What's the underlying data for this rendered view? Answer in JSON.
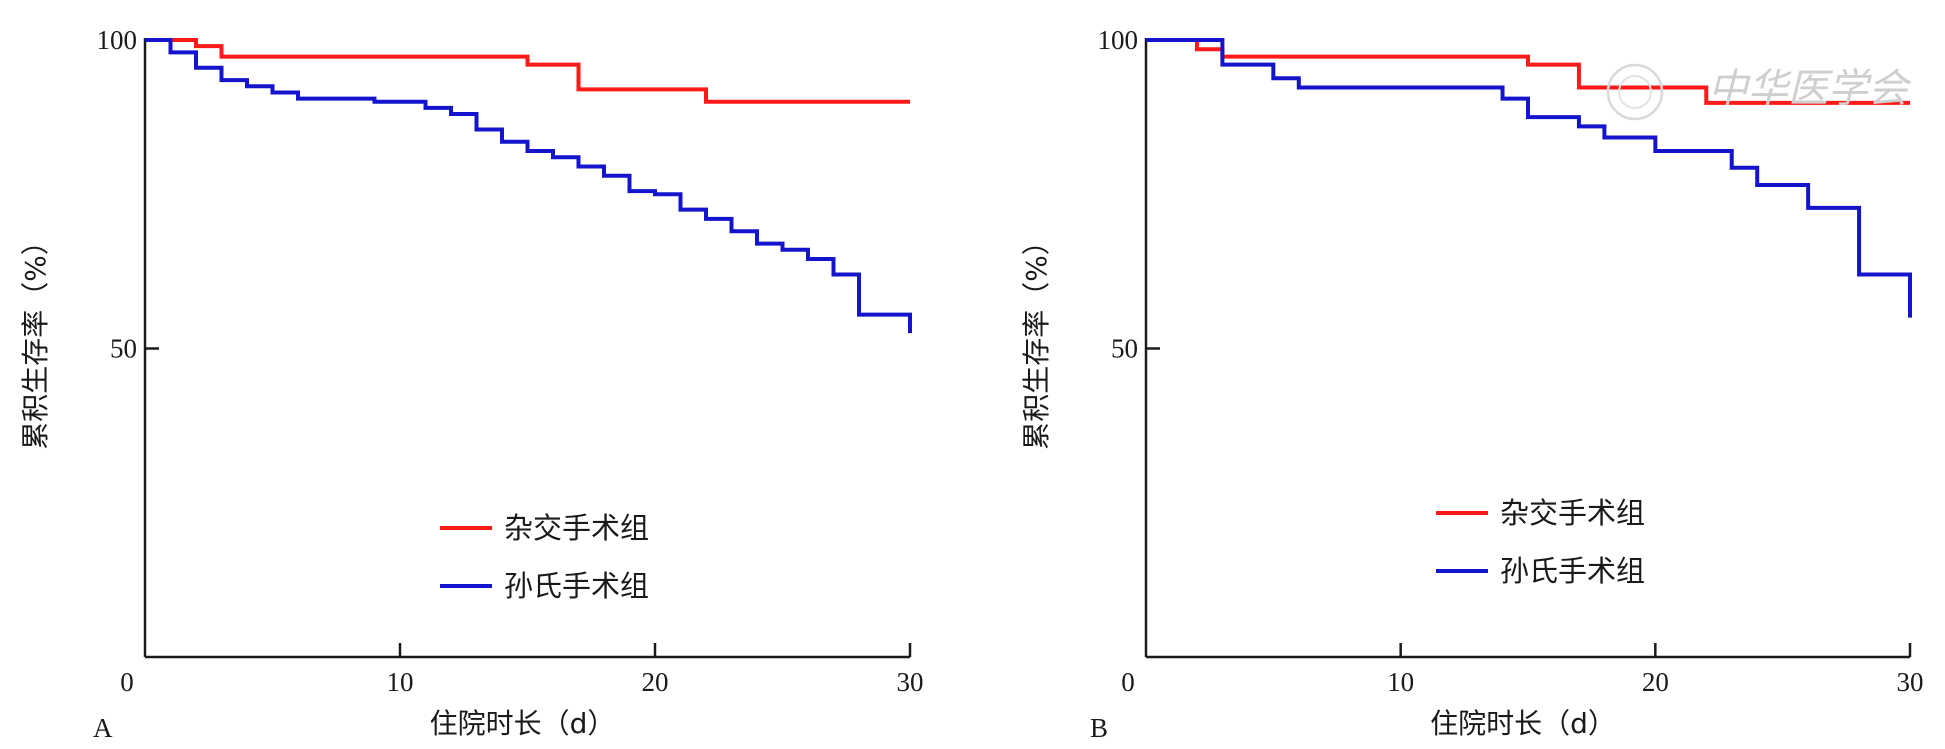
{
  "chart_data": [
    {
      "panel": "A",
      "type": "line",
      "step": true,
      "xlabel": "住院时长（d）",
      "ylabel": "累积生存率（%）",
      "xlim": [
        0,
        30
      ],
      "ylim": [
        0,
        100
      ],
      "xticks": [
        "0",
        "10",
        "20",
        "30"
      ],
      "yticks": [
        "50",
        "100"
      ],
      "legend_position": "center",
      "series": [
        {
          "name": "杂交手术组",
          "color": "#ff1a1a",
          "points": [
            [
              0,
              100
            ],
            [
              2,
              99
            ],
            [
              3,
              97.3
            ],
            [
              15,
              96
            ],
            [
              17,
              92
            ],
            [
              22,
              90
            ],
            [
              30,
              90
            ]
          ]
        },
        {
          "name": "孙氏手术组",
          "color": "#1414cc",
          "points": [
            [
              0,
              100
            ],
            [
              1,
              98
            ],
            [
              2,
              95.5
            ],
            [
              3,
              93.5
            ],
            [
              4,
              92.5
            ],
            [
              5,
              91.5
            ],
            [
              6,
              90.5
            ],
            [
              9,
              90
            ],
            [
              11,
              89
            ],
            [
              12,
              88
            ],
            [
              13,
              85.5
            ],
            [
              14,
              83.5
            ],
            [
              15,
              82
            ],
            [
              16,
              81
            ],
            [
              17,
              79.5
            ],
            [
              18,
              78
            ],
            [
              19,
              75.5
            ],
            [
              20,
              75
            ],
            [
              21,
              72.5
            ],
            [
              22,
              71
            ],
            [
              23,
              69
            ],
            [
              24,
              67
            ],
            [
              25,
              66
            ],
            [
              26,
              64.5
            ],
            [
              27,
              62
            ],
            [
              28,
              55.5
            ],
            [
              30,
              55
            ],
            [
              30,
              52.5
            ]
          ]
        }
      ]
    },
    {
      "panel": "B",
      "type": "line",
      "step": true,
      "xlabel": "住院时长（d）",
      "ylabel": "累积生存率（%）",
      "xlim": [
        0,
        30
      ],
      "ylim": [
        0,
        100
      ],
      "xticks": [
        "0",
        "10",
        "20",
        "30"
      ],
      "yticks": [
        "50",
        "100"
      ],
      "legend_position": "center",
      "series": [
        {
          "name": "杂交手术组",
          "color": "#ff1a1a",
          "points": [
            [
              0,
              100
            ],
            [
              2,
              98.5
            ],
            [
              3,
              97.3
            ],
            [
              15,
              96
            ],
            [
              17,
              92.3
            ],
            [
              22,
              89.8
            ],
            [
              30,
              89.8
            ]
          ]
        },
        {
          "name": "孙氏手术组",
          "color": "#1414cc",
          "points": [
            [
              0,
              100
            ],
            [
              3,
              96
            ],
            [
              5,
              93.8
            ],
            [
              6,
              92.3
            ],
            [
              14,
              90.5
            ],
            [
              15,
              87.5
            ],
            [
              17,
              86
            ],
            [
              18,
              84.2
            ],
            [
              20,
              82
            ],
            [
              23,
              79.3
            ],
            [
              24,
              76.5
            ],
            [
              26,
              72.8
            ],
            [
              28,
              62
            ],
            [
              30,
              62
            ],
            [
              30,
              55
            ]
          ]
        }
      ]
    }
  ],
  "watermark": "中华医学会"
}
